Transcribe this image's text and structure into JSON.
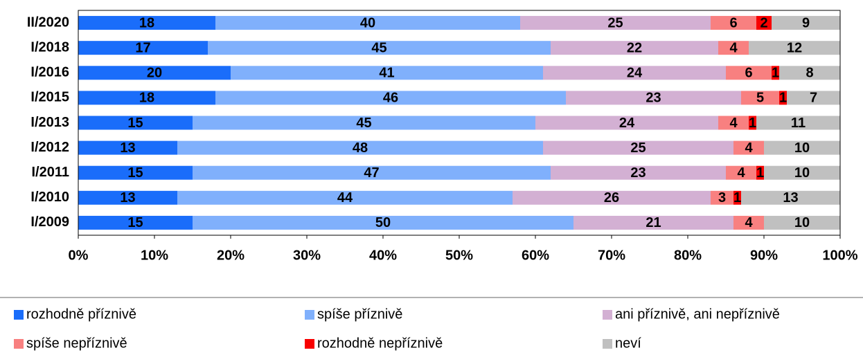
{
  "chart_data": {
    "type": "stacked-bar-horizontal",
    "categories": [
      "II/2020",
      "I/2018",
      "I/2016",
      "I/2015",
      "I/2013",
      "I/2012",
      "I/2011",
      "I/2010",
      "I/2009"
    ],
    "series": [
      {
        "name": "rozhodně příznivě",
        "color": "#1a6dfa",
        "values": [
          18,
          17,
          20,
          18,
          15,
          13,
          15,
          13,
          15
        ]
      },
      {
        "name": "spíše příznivě",
        "color": "#80b0fc",
        "values": [
          40,
          45,
          41,
          46,
          45,
          48,
          47,
          44,
          50
        ]
      },
      {
        "name": "ani příznivě, ani nepříznivě",
        "color": "#d3b0d3",
        "values": [
          25,
          22,
          24,
          23,
          24,
          25,
          23,
          26,
          21
        ]
      },
      {
        "name": "spíše nepříznivě",
        "color": "#f88080",
        "values": [
          6,
          4,
          6,
          5,
          4,
          4,
          4,
          3,
          4
        ]
      },
      {
        "name": "rozhodně nepříznivě",
        "color": "#f80000",
        "values": [
          2,
          null,
          1,
          1,
          1,
          null,
          1,
          1,
          null
        ]
      },
      {
        "name": "neví",
        "color": "#c0c0c0",
        "values": [
          9,
          12,
          8,
          7,
          11,
          10,
          10,
          13,
          10
        ]
      }
    ],
    "xlim": [
      0,
      100
    ],
    "xticks": [
      {
        "value": 0,
        "label": "0%"
      },
      {
        "value": 10,
        "label": "10%"
      },
      {
        "value": 20,
        "label": "20%"
      },
      {
        "value": 30,
        "label": "30%"
      },
      {
        "value": 40,
        "label": "40%"
      },
      {
        "value": 50,
        "label": "50%"
      },
      {
        "value": 60,
        "label": "60%"
      },
      {
        "value": 70,
        "label": "70%"
      },
      {
        "value": 80,
        "label": "80%"
      },
      {
        "value": 90,
        "label": "90%"
      },
      {
        "value": 100,
        "label": "100%"
      }
    ],
    "legend": "bottom"
  }
}
